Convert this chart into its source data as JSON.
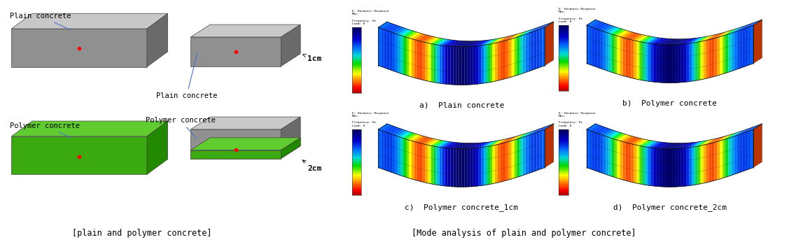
{
  "title_left": "[plain and polymer concrete]",
  "title_right": "[Mode analysis of plain and polymer concrete]",
  "label_plain_top": "Plain concrete",
  "label_polymer_bottom": "Polymer concrete",
  "label_plain_mid": "Plain concrete",
  "label_polymer_mid": "Polymer concrete",
  "label_1cm": "1cm",
  "label_2cm": "2cm",
  "label_a": "a)  Plain concrete",
  "label_b": "b)  Polymer concrete",
  "label_c": "c)  Polymer concrete_1cm",
  "label_d": "d)  Polymer concrete_2cm",
  "bg_color": "#ffffff",
  "font_size_label": 7.5,
  "font_size_title": 8.5,
  "font_family": "monospace"
}
